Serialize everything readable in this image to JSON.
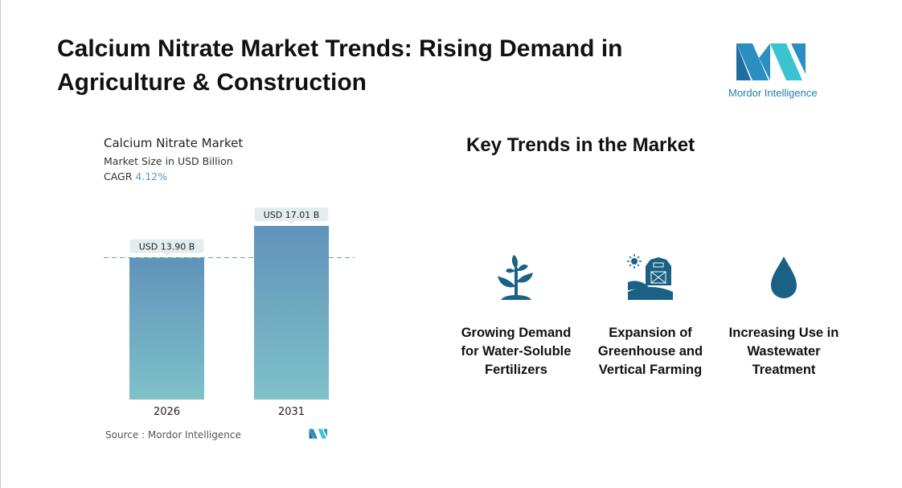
{
  "header": {
    "title": "Calcium Nitrate Market Trends: Rising Demand in Agriculture & Construction",
    "logo_text": "Mordor Intelligence"
  },
  "chart_data": {
    "type": "bar",
    "title": "Calcium Nitrate Market",
    "subtitle": "Market Size in USD Billion",
    "cagr_label": "CAGR",
    "cagr_value": "4.12%",
    "categories": [
      "2026",
      "2031"
    ],
    "values": [
      13.9,
      17.01
    ],
    "data_labels": [
      "USD 13.90 B",
      "USD 17.01 B"
    ],
    "ylim": [
      0,
      17.01
    ],
    "grid": false,
    "bar_color_top": "#5f93ba",
    "bar_color_bottom": "#7fc1c9",
    "source": "Source :  Mordor Intelligence"
  },
  "trends": {
    "title": "Key Trends in the Market",
    "icon_color": "#1a6185",
    "items": [
      {
        "icon": "plant-icon",
        "label": "Growing Demand for Water-Soluble Fertilizers"
      },
      {
        "icon": "barn-icon",
        "label": "Expansion of Greenhouse and Vertical Farming"
      },
      {
        "icon": "water-drop-icon",
        "label": "Increasing Use in Wastewater Treatment"
      }
    ]
  }
}
